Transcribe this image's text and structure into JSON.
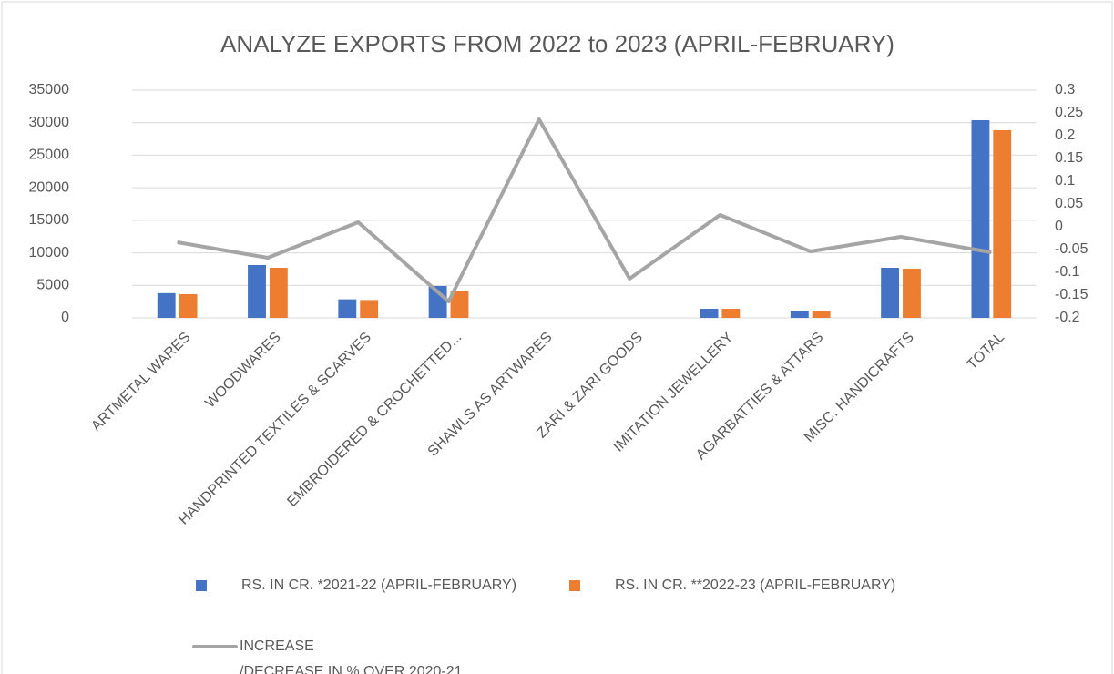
{
  "chart_data": {
    "type": "bar",
    "title": "ANALYZE EXPORTS FROM 2022 to 2023 (APRIL-FEBRUARY)",
    "categories": [
      "ARTMETAL WARES",
      "WOODWARES",
      "HANDPRINTED  TEXTILES & SCARVES",
      "EMBROIDERED & CROCHETTED...",
      "SHAWLS AS ARTWARES",
      "ZARI & ZARI GOODS",
      "IMITATION JEWELLERY",
      "AGARBATTIES & ATTARS",
      "MISC. HANDICRAFTS",
      "TOTAL"
    ],
    "series": [
      {
        "name": "RS. IN CR. *2021-22 (APRIL-FEBRUARY)",
        "type": "bar",
        "color": "#4472c4",
        "values": [
          3800,
          8120,
          2850,
          4900,
          0,
          0,
          1400,
          1120,
          7700,
          30380
        ]
      },
      {
        "name": "RS. IN CR. **2022-23 (APRIL-FEBRUARY)",
        "type": "bar",
        "color": "#ed7d31",
        "values": [
          3650,
          7700,
          2750,
          4060,
          0,
          0,
          1400,
          1100,
          7560,
          28850
        ]
      },
      {
        "name": "INCREASE\n/DECREASE IN % OVER 2020-21",
        "type": "line",
        "axis": "y2",
        "color": "#a5a5a5",
        "values": [
          -0.034,
          -0.068,
          0.01,
          -0.164,
          0.236,
          -0.114,
          0.026,
          -0.054,
          -0.022,
          -0.056
        ]
      }
    ],
    "ylim": [
      0,
      35000
    ],
    "yticks": [
      0,
      5000,
      10000,
      15000,
      20000,
      25000,
      30000,
      35000
    ],
    "y2lim": [
      -0.2,
      0.3
    ],
    "y2ticks": [
      -0.2,
      -0.15,
      -0.1,
      -0.05,
      0,
      0.05,
      0.1,
      0.15,
      0.2,
      0.25,
      0.3
    ],
    "grid": true,
    "legend": "bottom"
  }
}
